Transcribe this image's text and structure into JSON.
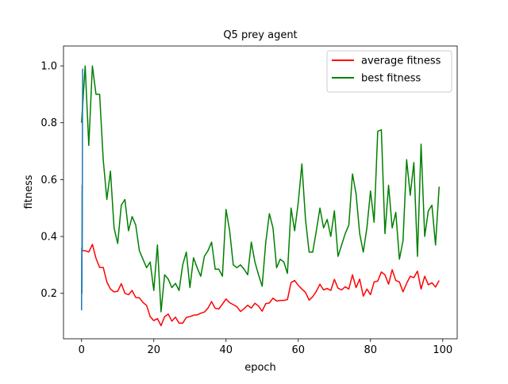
{
  "chart_data": {
    "type": "line",
    "title": "Q5 prey agent",
    "xlabel": "epoch",
    "ylabel": "fitness",
    "xlim": [
      -5,
      104
    ],
    "ylim": [
      0.04,
      1.07
    ],
    "x_ticks": [
      0,
      20,
      40,
      60,
      80,
      100
    ],
    "y_ticks": [
      0.2,
      0.4,
      0.6,
      0.8,
      1.0
    ],
    "y_tick_labels": [
      "0.2",
      "0.4",
      "0.6",
      "0.8",
      "1.0"
    ],
    "grid": false,
    "legend_position": "top-right",
    "series": [
      {
        "name": "average fitness",
        "color": "#ff0000",
        "x": [
          0,
          1,
          2,
          3,
          4,
          5,
          6,
          7,
          8,
          9,
          10,
          11,
          12,
          13,
          14,
          15,
          16,
          17,
          18,
          19,
          20,
          21,
          22,
          23,
          24,
          25,
          26,
          27,
          28,
          29,
          30,
          31,
          32,
          33,
          34,
          35,
          36,
          37,
          38,
          39,
          40,
          41,
          42,
          43,
          44,
          45,
          46,
          47,
          48,
          49,
          50,
          51,
          52,
          53,
          54,
          55,
          56,
          57,
          58,
          59,
          60,
          61,
          62,
          63,
          64,
          65,
          66,
          67,
          68,
          69,
          70,
          71,
          72,
          73,
          74,
          75,
          76,
          77,
          78,
          79,
          80,
          81,
          82,
          83,
          84,
          85,
          86,
          87,
          88,
          89,
          90,
          91,
          92,
          93,
          94,
          95,
          96,
          97,
          98,
          99
        ],
        "values": [
          0.35,
          0.35,
          0.345,
          0.372,
          0.323,
          0.291,
          0.291,
          0.24,
          0.215,
          0.205,
          0.207,
          0.234,
          0.2,
          0.195,
          0.21,
          0.185,
          0.184,
          0.168,
          0.157,
          0.118,
          0.104,
          0.111,
          0.086,
          0.118,
          0.127,
          0.102,
          0.116,
          0.095,
          0.095,
          0.115,
          0.118,
          0.123,
          0.124,
          0.13,
          0.134,
          0.148,
          0.171,
          0.147,
          0.145,
          0.162,
          0.18,
          0.167,
          0.16,
          0.153,
          0.136,
          0.146,
          0.158,
          0.148,
          0.165,
          0.155,
          0.137,
          0.164,
          0.166,
          0.183,
          0.173,
          0.175,
          0.175,
          0.178,
          0.238,
          0.245,
          0.228,
          0.215,
          0.203,
          0.176,
          0.188,
          0.207,
          0.232,
          0.212,
          0.217,
          0.21,
          0.249,
          0.218,
          0.212,
          0.223,
          0.215,
          0.265,
          0.22,
          0.25,
          0.19,
          0.215,
          0.195,
          0.24,
          0.243,
          0.275,
          0.265,
          0.232,
          0.283,
          0.245,
          0.24,
          0.205,
          0.235,
          0.26,
          0.255,
          0.278,
          0.215,
          0.26,
          0.23,
          0.237,
          0.222,
          0.245
        ]
      },
      {
        "name": "best fitness",
        "color": "#008000",
        "x": [
          0,
          1,
          2,
          3,
          4,
          5,
          6,
          7,
          8,
          9,
          10,
          11,
          12,
          13,
          14,
          15,
          16,
          17,
          18,
          19,
          20,
          21,
          22,
          23,
          24,
          25,
          26,
          27,
          28,
          29,
          30,
          31,
          32,
          33,
          34,
          35,
          36,
          37,
          38,
          39,
          40,
          41,
          42,
          43,
          44,
          45,
          46,
          47,
          48,
          49,
          50,
          51,
          52,
          53,
          54,
          55,
          56,
          57,
          58,
          59,
          60,
          61,
          62,
          63,
          64,
          65,
          66,
          67,
          68,
          69,
          70,
          71,
          72,
          73,
          74,
          75,
          76,
          77,
          78,
          79,
          80,
          81,
          82,
          83,
          84,
          85,
          86,
          87,
          88,
          89,
          90,
          91,
          92,
          93,
          94,
          95,
          96,
          97,
          98,
          99
        ],
        "values": [
          0.8,
          1.0,
          0.72,
          1.0,
          0.9,
          0.9,
          0.67,
          0.53,
          0.63,
          0.43,
          0.375,
          0.51,
          0.53,
          0.42,
          0.47,
          0.44,
          0.35,
          0.32,
          0.29,
          0.31,
          0.21,
          0.37,
          0.135,
          0.265,
          0.25,
          0.22,
          0.235,
          0.21,
          0.3,
          0.345,
          0.22,
          0.325,
          0.29,
          0.26,
          0.33,
          0.35,
          0.38,
          0.285,
          0.285,
          0.26,
          0.495,
          0.42,
          0.3,
          0.29,
          0.3,
          0.285,
          0.265,
          0.38,
          0.31,
          0.265,
          0.225,
          0.38,
          0.48,
          0.43,
          0.29,
          0.32,
          0.31,
          0.27,
          0.5,
          0.42,
          0.52,
          0.655,
          0.46,
          0.345,
          0.345,
          0.42,
          0.5,
          0.43,
          0.46,
          0.4,
          0.49,
          0.33,
          0.37,
          0.41,
          0.44,
          0.62,
          0.55,
          0.41,
          0.345,
          0.43,
          0.56,
          0.45,
          0.77,
          0.775,
          0.41,
          0.58,
          0.43,
          0.485,
          0.32,
          0.385,
          0.67,
          0.545,
          0.66,
          0.33,
          0.725,
          0.4,
          0.49,
          0.51,
          0.37,
          0.575
        ]
      },
      {
        "name": "",
        "color": "#1f77b4",
        "x": [
          0,
          0.05,
          0.1,
          0.15,
          0.2,
          0.25,
          0.3
        ],
        "values": [
          0.14,
          0.36,
          0.2,
          0.58,
          0.35,
          0.8,
          0.99
        ]
      }
    ]
  }
}
